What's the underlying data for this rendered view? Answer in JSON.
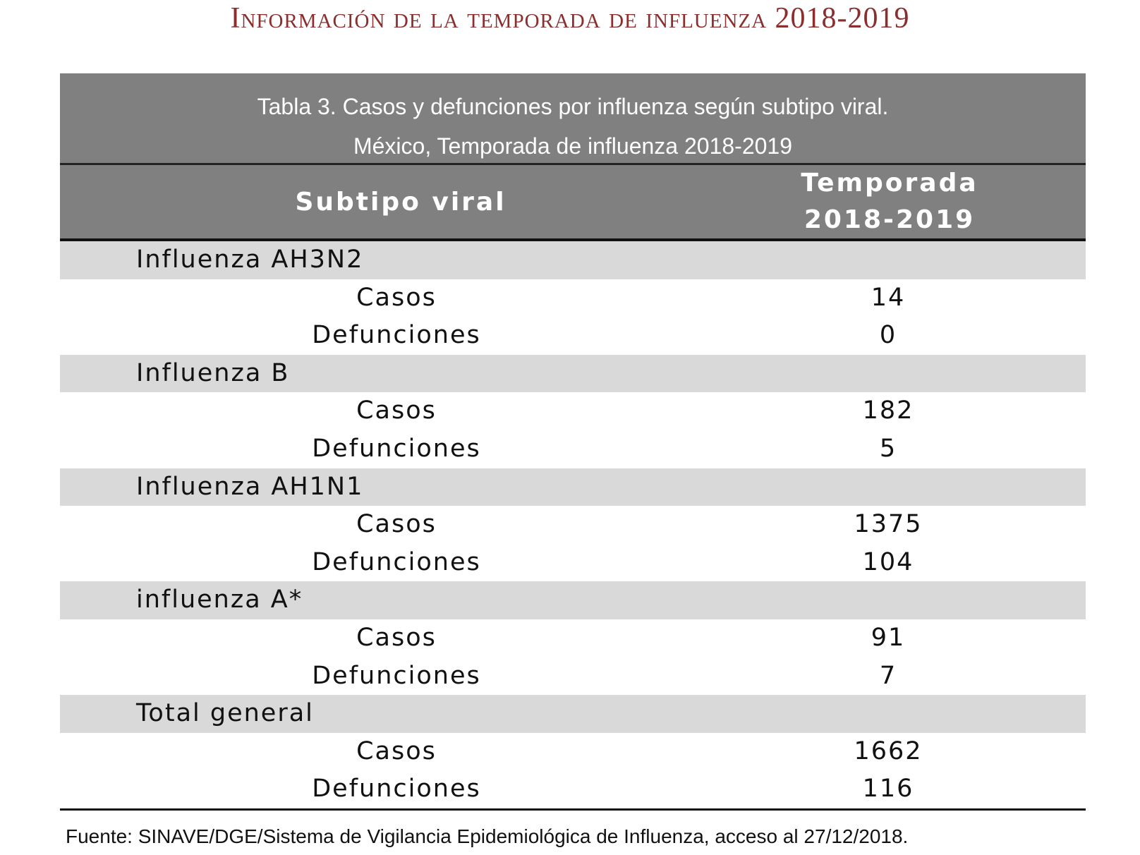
{
  "header": {
    "title": "Información de la temporada de influenza 2018-2019"
  },
  "table": {
    "caption": [
      "Tabla 3. Casos y defunciones por influenza según subtipo viral.",
      "México, Temporada de influenza 2018-2019"
    ],
    "columns": [
      "Subtipo viral",
      "Temporada 2018-2019"
    ],
    "groups": [
      {
        "name": "Influenza AH3N2",
        "rows": [
          {
            "label": "Casos",
            "value": 14
          },
          {
            "label": "Defunciones",
            "value": 0
          }
        ]
      },
      {
        "name": "Influenza B",
        "rows": [
          {
            "label": "Casos",
            "value": 182
          },
          {
            "label": "Defunciones",
            "value": 5
          }
        ]
      },
      {
        "name": "Influenza AH1N1",
        "rows": [
          {
            "label": "Casos",
            "value": 1375
          },
          {
            "label": "Defunciones",
            "value": 104
          }
        ]
      },
      {
        "name": "influenza A*",
        "rows": [
          {
            "label": "Casos",
            "value": 91
          },
          {
            "label": "Defunciones",
            "value": 7
          }
        ]
      },
      {
        "name": "Total general",
        "rows": [
          {
            "label": "Casos",
            "value": 1662
          },
          {
            "label": "Defunciones",
            "value": 116
          }
        ]
      }
    ]
  },
  "source": "Fuente: SINAVE/DGE/Sistema de Vigilancia Epidemiológica de Influenza, acceso al 27/12/2018."
}
